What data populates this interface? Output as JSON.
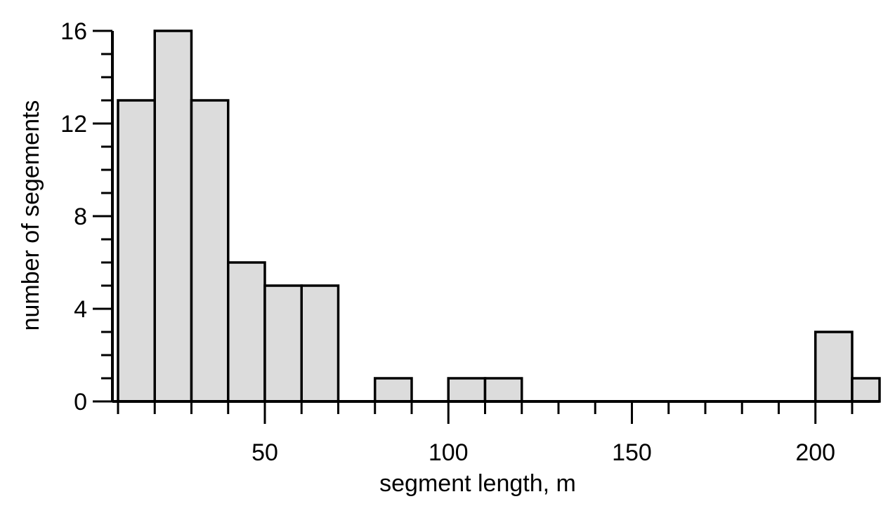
{
  "chart_data": {
    "type": "bar",
    "title": "",
    "xlabel": "segment length, m",
    "ylabel": "number of segements",
    "bin_width": 10,
    "bins": [
      {
        "start": 10,
        "end": 20,
        "count": 13
      },
      {
        "start": 20,
        "end": 30,
        "count": 16
      },
      {
        "start": 30,
        "end": 40,
        "count": 13
      },
      {
        "start": 40,
        "end": 50,
        "count": 6
      },
      {
        "start": 50,
        "end": 60,
        "count": 5
      },
      {
        "start": 60,
        "end": 70,
        "count": 5
      },
      {
        "start": 70,
        "end": 80,
        "count": 0
      },
      {
        "start": 80,
        "end": 90,
        "count": 1
      },
      {
        "start": 90,
        "end": 100,
        "count": 0
      },
      {
        "start": 100,
        "end": 110,
        "count": 1
      },
      {
        "start": 110,
        "end": 120,
        "count": 1
      },
      {
        "start": 120,
        "end": 130,
        "count": 0
      },
      {
        "start": 130,
        "end": 140,
        "count": 0
      },
      {
        "start": 140,
        "end": 150,
        "count": 0
      },
      {
        "start": 150,
        "end": 160,
        "count": 0
      },
      {
        "start": 160,
        "end": 170,
        "count": 0
      },
      {
        "start": 170,
        "end": 180,
        "count": 0
      },
      {
        "start": 180,
        "end": 190,
        "count": 0
      },
      {
        "start": 190,
        "end": 200,
        "count": 0
      },
      {
        "start": 200,
        "end": 210,
        "count": 3
      },
      {
        "start": 210,
        "end": 220,
        "count": 1
      }
    ],
    "xlim": [
      10,
      219
    ],
    "ylim": [
      0,
      16
    ],
    "x_major_ticks": [
      50,
      100,
      150,
      200
    ],
    "x_minor_step": 10,
    "y_major_ticks": [
      0,
      4,
      8,
      12,
      16
    ],
    "y_minor_step": 1,
    "bar_color": "#dcdcdc",
    "edge_color": "#000000",
    "grid": false,
    "legend": "none"
  }
}
